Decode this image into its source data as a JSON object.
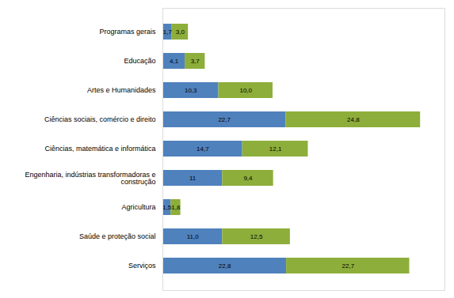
{
  "chart_data": {
    "type": "bar",
    "orientation": "horizontal",
    "stacked": true,
    "categories": [
      "Serviços",
      "Saúde e proteção social",
      "Agricultura",
      "Engenharia, indústrias transformadoras e\nconstrução",
      "Ciências, matemática e informática",
      "Ciências sociais, comércio e direito",
      "Artes e Humanidades",
      "Educação",
      "Programas gerais"
    ],
    "series": [
      {
        "color": "#4F81BD",
        "values": [
          22.8,
          11.0,
          1.5,
          11.0,
          14.7,
          22.7,
          10.3,
          4.1,
          1.7
        ],
        "value_labels": [
          "22,8",
          "11,0",
          "1,5",
          "11",
          "14,7",
          "22,7",
          "10,3",
          "4,1",
          "1,7"
        ]
      },
      {
        "color": "#8DAE3A",
        "values": [
          22.7,
          12.5,
          1.8,
          9.4,
          12.1,
          24.8,
          10.0,
          3.7,
          3.0
        ],
        "value_labels": [
          "22,7",
          "12,5",
          "1,8",
          "9,4",
          "12,1",
          "24,8",
          "10,0",
          "3,7",
          "3,0"
        ]
      }
    ],
    "xlim": [
      0,
      52
    ],
    "data_labels": true,
    "tick_labels": "y"
  }
}
